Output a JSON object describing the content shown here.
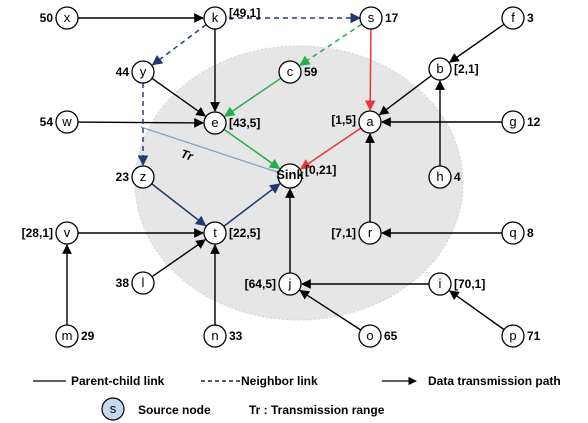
{
  "colors": {
    "black": "#000000",
    "red": "#e53935",
    "green": "#22b04b",
    "navy": "#1f3a6e",
    "neighbor": "#2a3f7a",
    "source_fill": "#c5d9ee",
    "sink_fill": "#c0504d",
    "range_fill": "#e6e6e6",
    "range_line": "#7aa0c8"
  },
  "nodes": {
    "x": {
      "label": "x",
      "annotation": "50"
    },
    "k": {
      "label": "k",
      "annotation": "[49,1]"
    },
    "s": {
      "label": "s",
      "annotation": "17"
    },
    "f": {
      "label": "f",
      "annotation": "3"
    },
    "y": {
      "label": "y",
      "annotation": "44"
    },
    "c": {
      "label": "c",
      "annotation": "59"
    },
    "b": {
      "label": "b",
      "annotation": "[2,1]"
    },
    "w": {
      "label": "w",
      "annotation": "54"
    },
    "e": {
      "label": "e",
      "annotation": "[43,5]"
    },
    "a": {
      "label": "a",
      "annotation": "[1,5]"
    },
    "g": {
      "label": "g",
      "annotation": "12"
    },
    "z": {
      "label": "z",
      "annotation": "23"
    },
    "sink": {
      "label": "Sink",
      "annotation": "[0,21]"
    },
    "h": {
      "label": "h",
      "annotation": "4"
    },
    "v": {
      "label": "v",
      "annotation": "[28,1]"
    },
    "t": {
      "label": "t",
      "annotation": "[22,5]"
    },
    "r": {
      "label": "r",
      "annotation": "[7,1]"
    },
    "q": {
      "label": "q",
      "annotation": "8"
    },
    "l": {
      "label": "l",
      "annotation": "38"
    },
    "j": {
      "label": "j",
      "annotation": "[64,5]"
    },
    "i": {
      "label": "i",
      "annotation": "[70,1]"
    },
    "m": {
      "label": "m",
      "annotation": "29"
    },
    "n": {
      "label": "n",
      "annotation": "33"
    },
    "o": {
      "label": "o",
      "annotation": "65"
    },
    "p": {
      "label": "p",
      "annotation": "71"
    }
  },
  "range_label": "Tr",
  "legend": {
    "parent_child": "Parent-child link",
    "neighbor": "Neighbor link",
    "data_path": "Data transmission path",
    "source_symbol": "s",
    "source_node": "Source node",
    "transmission_range": "Tr : Transmission range"
  }
}
